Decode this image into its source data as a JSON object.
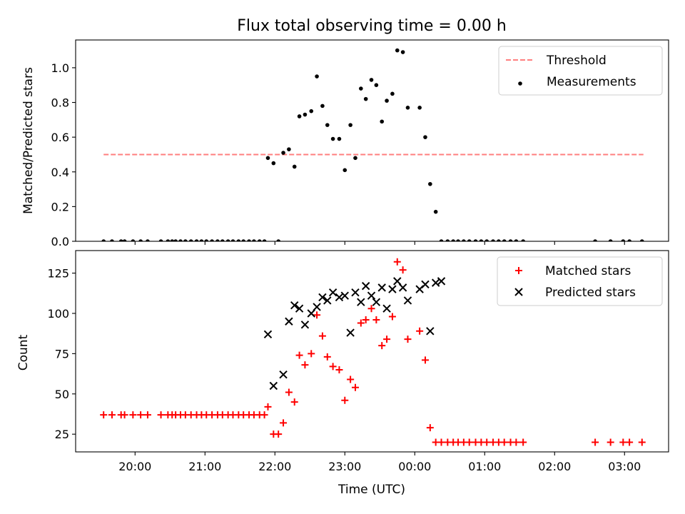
{
  "chart_data": {
    "title": "Flux total observing time = 0.00 h",
    "x_axis": {
      "label": "Time (UTC)",
      "tick_labels": [
        "20:00",
        "21:00",
        "22:00",
        "23:00",
        "00:00",
        "01:00",
        "02:00",
        "03:00"
      ],
      "range_hours": [
        -4.85,
        3.63
      ],
      "note": "x values are hours relative to 00:00 UTC"
    },
    "panels": [
      {
        "type": "scatter",
        "ylabel": "Matched/Predicted stars",
        "ylim": [
          0,
          1.16
        ],
        "yticks": [
          0.0,
          0.2,
          0.4,
          0.6,
          0.8,
          1.0
        ],
        "ytick_labels": [
          "0.0",
          "0.2",
          "0.4",
          "0.6",
          "0.8",
          "1.0"
        ],
        "legend_position": "top-right",
        "series": [
          {
            "name": "Threshold",
            "style": "dashed-line",
            "color": "#ff7f7f",
            "x": [
              -4.45,
              3.27
            ],
            "y": [
              0.5,
              0.5
            ]
          },
          {
            "name": "Measurements",
            "style": "dot",
            "color": "#000000",
            "x": [
              -4.45,
              -4.33,
              -4.2,
              -4.15,
              -4.03,
              -3.92,
              -3.82,
              -3.63,
              -3.53,
              -3.47,
              -3.42,
              -3.35,
              -3.28,
              -3.2,
              -3.12,
              -3.05,
              -2.98,
              -2.9,
              -2.82,
              -2.75,
              -2.67,
              -2.6,
              -2.52,
              -2.45,
              -2.37,
              -2.3,
              -2.22,
              -2.15,
              -2.1,
              -2.02,
              -1.95,
              -1.88,
              -1.8,
              -1.72,
              -1.65,
              -1.57,
              -1.48,
              -1.4,
              -1.32,
              -1.25,
              -1.17,
              -1.08,
              -1.0,
              -0.92,
              -0.85,
              -0.77,
              -0.7,
              -0.62,
              -0.55,
              -0.47,
              -0.4,
              -0.32,
              -0.25,
              -0.17,
              -0.1,
              0.07,
              0.15,
              0.22,
              0.3,
              0.38,
              0.47,
              0.55,
              0.62,
              0.7,
              0.78,
              0.87,
              0.95,
              1.03,
              1.12,
              1.2,
              1.28,
              1.37,
              1.45,
              1.55,
              2.58,
              2.8,
              2.98,
              3.07,
              3.25
            ],
            "y": [
              0,
              0,
              0,
              0,
              0,
              0,
              0,
              0,
              0,
              0,
              0,
              0,
              0,
              0,
              0,
              0,
              0,
              0,
              0,
              0,
              0,
              0,
              0,
              0,
              0,
              0,
              0,
              0,
              0.48,
              0.45,
              0,
              0.51,
              0.53,
              0.43,
              0.72,
              0.73,
              0.75,
              0.95,
              0.78,
              0.67,
              0.59,
              0.59,
              0.41,
              0.67,
              0.48,
              0.88,
              0.82,
              0.93,
              0.9,
              0.69,
              0.81,
              0.85,
              1.1,
              1.09,
              0.77,
              0.77,
              0.6,
              0.33,
              0.17,
              0,
              0,
              0,
              0,
              0,
              0,
              0,
              0,
              0,
              0,
              0,
              0,
              0,
              0,
              0,
              0,
              0,
              0,
              0,
              0
            ]
          }
        ]
      },
      {
        "type": "scatter",
        "ylabel": "Count",
        "ylim": [
          14,
          139
        ],
        "yticks": [
          25,
          50,
          75,
          100,
          125
        ],
        "ytick_labels": [
          "25",
          "50",
          "75",
          "100",
          "125"
        ],
        "legend_position": "top-right",
        "series": [
          {
            "name": "Matched stars",
            "marker": "plus",
            "color": "#ff0000",
            "x": [
              -4.45,
              -4.33,
              -4.2,
              -4.15,
              -4.03,
              -3.92,
              -3.82,
              -3.63,
              -3.53,
              -3.47,
              -3.42,
              -3.35,
              -3.28,
              -3.2,
              -3.12,
              -3.05,
              -2.98,
              -2.9,
              -2.82,
              -2.75,
              -2.67,
              -2.6,
              -2.52,
              -2.45,
              -2.37,
              -2.3,
              -2.22,
              -2.15,
              -2.1,
              -2.02,
              -1.95,
              -1.88,
              -1.8,
              -1.72,
              -1.65,
              -1.57,
              -1.48,
              -1.4,
              -1.32,
              -1.25,
              -1.17,
              -1.08,
              -1.0,
              -0.92,
              -0.85,
              -0.77,
              -0.7,
              -0.62,
              -0.55,
              -0.47,
              -0.4,
              -0.32,
              -0.25,
              -0.17,
              -0.1,
              0.07,
              0.15,
              0.22,
              0.3,
              0.38,
              0.47,
              0.55,
              0.62,
              0.7,
              0.78,
              0.87,
              0.95,
              1.03,
              1.12,
              1.2,
              1.28,
              1.37,
              1.45,
              1.55,
              2.58,
              2.8,
              2.98,
              3.07,
              3.25
            ],
            "y": [
              37,
              37,
              37,
              37,
              37,
              37,
              37,
              37,
              37,
              37,
              37,
              37,
              37,
              37,
              37,
              37,
              37,
              37,
              37,
              37,
              37,
              37,
              37,
              37,
              37,
              37,
              37,
              37,
              42,
              25,
              25,
              32,
              51,
              45,
              74,
              68,
              75,
              99,
              86,
              73,
              67,
              65,
              46,
              59,
              54,
              94,
              96,
              103,
              96,
              80,
              84,
              98,
              132,
              127,
              84,
              89,
              71,
              29,
              20,
              20,
              20,
              20,
              20,
              20,
              20,
              20,
              20,
              20,
              20,
              20,
              20,
              20,
              20,
              20,
              20,
              20,
              20,
              20,
              20
            ]
          },
          {
            "name": "Predicted stars",
            "marker": "x",
            "color": "#000000",
            "x": [
              -2.1,
              -2.02,
              -1.88,
              -1.8,
              -1.72,
              -1.65,
              -1.57,
              -1.48,
              -1.4,
              -1.32,
              -1.25,
              -1.17,
              -1.08,
              -1.0,
              -0.92,
              -0.85,
              -0.77,
              -0.7,
              -0.62,
              -0.55,
              -0.47,
              -0.4,
              -0.32,
              -0.25,
              -0.17,
              -0.1,
              0.07,
              0.15,
              0.22,
              0.3,
              0.38
            ],
            "y": [
              87,
              55,
              62,
              95,
              105,
              103,
              93,
              100,
              104,
              110,
              108,
              113,
              110,
              111,
              88,
              113,
              107,
              117,
              111,
              107,
              116,
              103,
              115,
              120,
              116,
              108,
              115,
              118,
              89,
              119,
              120
            ]
          }
        ]
      }
    ]
  }
}
